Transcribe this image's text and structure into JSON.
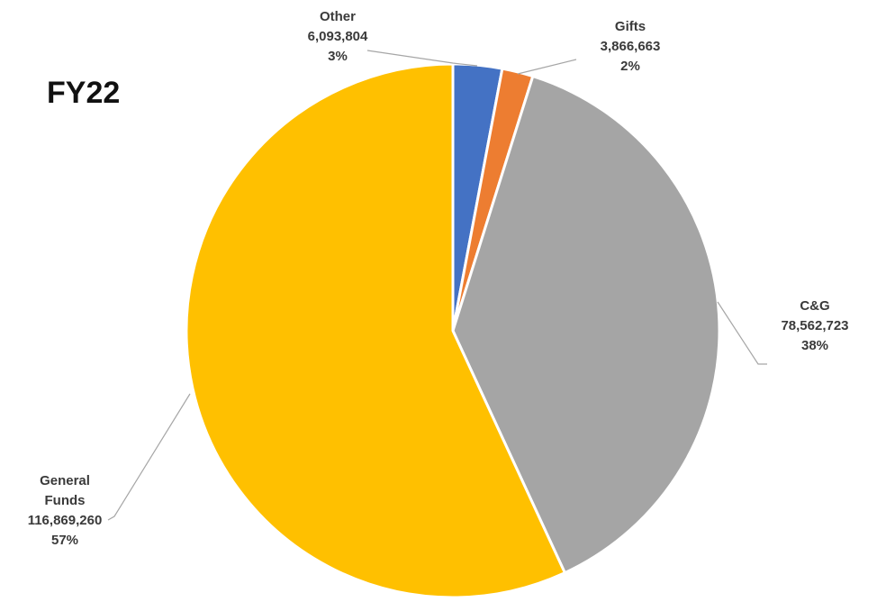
{
  "chart_data": {
    "type": "pie",
    "title": "FY22",
    "start_angle_deg": 0,
    "direction": "clockwise",
    "slices": [
      {
        "label_lines": [
          "Other"
        ],
        "value": 6093804,
        "value_text": "6,093,804",
        "percent_text": "3%",
        "color": "#4472C4"
      },
      {
        "label_lines": [
          "Gifts"
        ],
        "value": 3866663,
        "value_text": "3,866,663",
        "percent_text": "2%",
        "color": "#ED7D31"
      },
      {
        "label_lines": [
          "C&G"
        ],
        "value": 78562723,
        "value_text": "78,562,723",
        "percent_text": "38%",
        "color": "#A5A5A5"
      },
      {
        "label_lines": [
          "General",
          "Funds"
        ],
        "value": 116869260,
        "value_text": "116,869,260",
        "percent_text": "57%",
        "color": "#FFC000"
      }
    ]
  }
}
